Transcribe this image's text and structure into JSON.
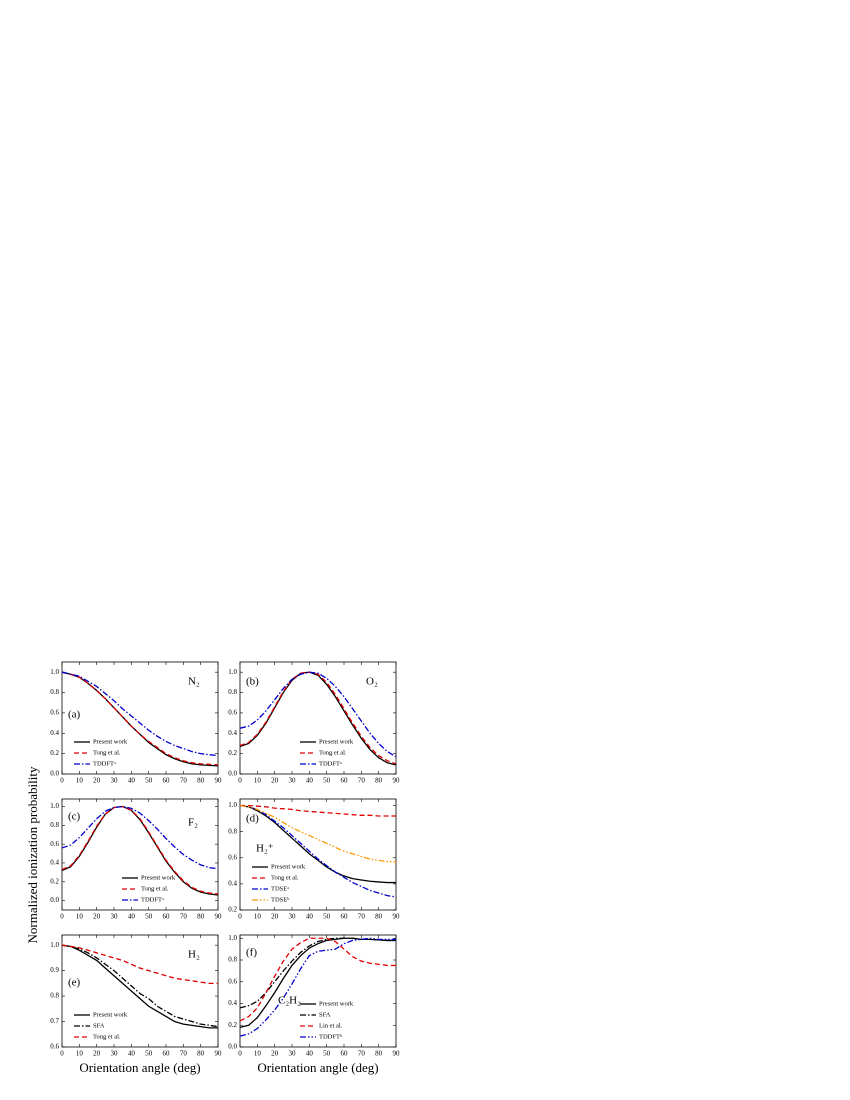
{
  "ylabel": "Normalized ionization probability",
  "chart_data": [
    {
      "type": "line",
      "panel": "(a)",
      "molecule": "N₂",
      "legend": "lower left",
      "x": [
        0,
        5,
        10,
        15,
        20,
        25,
        30,
        35,
        40,
        45,
        50,
        55,
        60,
        65,
        70,
        75,
        80,
        85,
        90
      ],
      "xlim": [
        0,
        90
      ],
      "xticks": [
        0,
        10,
        20,
        30,
        40,
        50,
        60,
        70,
        80,
        90
      ],
      "ylim": [
        0,
        1.1
      ],
      "yticks": [
        {
          "value": 0,
          "label": "0.0"
        },
        {
          "value": 0.2,
          "label": "0.2"
        },
        {
          "value": 0.4,
          "label": "0.4"
        },
        {
          "value": 0.6,
          "label": "0.6"
        },
        {
          "value": 0.8,
          "label": "0.8"
        },
        {
          "value": 1,
          "label": "1.0"
        }
      ],
      "series": [
        {
          "name": "Present work",
          "color": "#000000",
          "linestyle": "solid",
          "values": [
            1.0,
            0.98,
            0.95,
            0.89,
            0.82,
            0.74,
            0.65,
            0.56,
            0.47,
            0.39,
            0.31,
            0.25,
            0.19,
            0.15,
            0.12,
            0.1,
            0.09,
            0.085,
            0.08
          ]
        },
        {
          "name": "Tong et al.",
          "color": "#e00000",
          "linestyle": "dashed",
          "values": [
            1.0,
            0.98,
            0.95,
            0.89,
            0.82,
            0.74,
            0.65,
            0.56,
            0.47,
            0.39,
            0.32,
            0.26,
            0.2,
            0.16,
            0.13,
            0.11,
            0.1,
            0.095,
            0.09
          ]
        },
        {
          "name": "TDDFTᵃ",
          "color": "#0000cc",
          "linestyle": "dashdot",
          "values": [
            1.0,
            0.98,
            0.96,
            0.91,
            0.86,
            0.79,
            0.72,
            0.64,
            0.57,
            0.5,
            0.43,
            0.37,
            0.32,
            0.28,
            0.25,
            0.22,
            0.2,
            0.19,
            0.18
          ]
        }
      ]
    },
    {
      "type": "line",
      "panel": "(b)",
      "molecule": "O₂",
      "legend": "lower center",
      "x": [
        0,
        5,
        10,
        15,
        20,
        25,
        30,
        35,
        40,
        45,
        50,
        55,
        60,
        65,
        70,
        75,
        80,
        85,
        90
      ],
      "xlim": [
        0,
        90
      ],
      "xticks": [
        0,
        10,
        20,
        30,
        40,
        50,
        60,
        70,
        80,
        90
      ],
      "ylim": [
        0,
        1.1
      ],
      "yticks": [
        {
          "value": 0,
          "label": "0.0"
        },
        {
          "value": 0.2,
          "label": "0.2"
        },
        {
          "value": 0.4,
          "label": "0.4"
        },
        {
          "value": 0.6,
          "label": "0.6"
        },
        {
          "value": 0.8,
          "label": "0.8"
        },
        {
          "value": 1,
          "label": "1.0"
        }
      ],
      "series": [
        {
          "name": "Present work",
          "color": "#000000",
          "linestyle": "solid",
          "values": [
            0.27,
            0.3,
            0.38,
            0.5,
            0.65,
            0.8,
            0.92,
            0.99,
            1.0,
            0.97,
            0.88,
            0.76,
            0.62,
            0.48,
            0.35,
            0.24,
            0.16,
            0.11,
            0.09
          ]
        },
        {
          "name": "Tong et al.",
          "color": "#e00000",
          "linestyle": "dashed",
          "values": [
            0.28,
            0.31,
            0.39,
            0.51,
            0.66,
            0.81,
            0.93,
            0.99,
            1.0,
            0.98,
            0.9,
            0.78,
            0.64,
            0.5,
            0.37,
            0.26,
            0.18,
            0.13,
            0.1
          ]
        },
        {
          "name": "TDDFTᵃ",
          "color": "#0000cc",
          "linestyle": "dashdot",
          "values": [
            0.45,
            0.47,
            0.53,
            0.62,
            0.73,
            0.84,
            0.93,
            0.98,
            1.0,
            0.99,
            0.94,
            0.86,
            0.76,
            0.64,
            0.52,
            0.4,
            0.3,
            0.22,
            0.17
          ]
        }
      ]
    },
    {
      "type": "line",
      "panel": "(c)",
      "molecule": "F₂",
      "legend": "lower center",
      "x": [
        0,
        5,
        10,
        15,
        20,
        25,
        30,
        35,
        40,
        45,
        50,
        55,
        60,
        65,
        70,
        75,
        80,
        85,
        90
      ],
      "xlim": [
        0,
        90
      ],
      "xticks": [
        0,
        10,
        20,
        30,
        40,
        50,
        60,
        70,
        80,
        90
      ],
      "ylim": [
        -0.1,
        1.08
      ],
      "yticks": [
        {
          "value": 0,
          "label": "0.0"
        },
        {
          "value": 0.2,
          "label": "0.2"
        },
        {
          "value": 0.4,
          "label": "0.4"
        },
        {
          "value": 0.6,
          "label": "0.6"
        },
        {
          "value": 0.8,
          "label": "0.8"
        },
        {
          "value": 1,
          "label": "1.0"
        }
      ],
      "series": [
        {
          "name": "Present work",
          "color": "#000000",
          "linestyle": "solid",
          "values": [
            0.32,
            0.36,
            0.47,
            0.62,
            0.78,
            0.92,
            0.99,
            1.0,
            0.96,
            0.86,
            0.72,
            0.57,
            0.42,
            0.3,
            0.2,
            0.13,
            0.09,
            0.07,
            0.06
          ]
        },
        {
          "name": "Tong et al.",
          "color": "#e00000",
          "linestyle": "dashed",
          "values": [
            0.33,
            0.37,
            0.48,
            0.63,
            0.79,
            0.92,
            0.99,
            1.0,
            0.96,
            0.87,
            0.73,
            0.58,
            0.43,
            0.31,
            0.21,
            0.14,
            0.1,
            0.08,
            0.07
          ]
        },
        {
          "name": "TDDFTᵃ",
          "color": "#0000cc",
          "linestyle": "dashdot",
          "values": [
            0.56,
            0.59,
            0.67,
            0.77,
            0.87,
            0.95,
            0.99,
            1.0,
            0.98,
            0.93,
            0.85,
            0.76,
            0.66,
            0.57,
            0.49,
            0.43,
            0.38,
            0.35,
            0.34
          ]
        }
      ]
    },
    {
      "type": "line",
      "panel": "(d)",
      "molecule": "H₂⁺",
      "legend": "lower left",
      "x": [
        0,
        5,
        10,
        15,
        20,
        25,
        30,
        35,
        40,
        45,
        50,
        55,
        60,
        65,
        70,
        75,
        80,
        85,
        90
      ],
      "xlim": [
        0,
        90
      ],
      "xticks": [
        0,
        10,
        20,
        30,
        40,
        50,
        60,
        70,
        80,
        90
      ],
      "ylim": [
        0.2,
        1.05
      ],
      "yticks": [
        0.2,
        0.4,
        0.6,
        0.8,
        {
          "value": 1,
          "label": "1.0"
        }
      ],
      "series": [
        {
          "name": "Present work",
          "color": "#000000",
          "linestyle": "solid",
          "values": [
            1.0,
            0.99,
            0.96,
            0.92,
            0.87,
            0.81,
            0.75,
            0.69,
            0.63,
            0.58,
            0.53,
            0.49,
            0.46,
            0.44,
            0.43,
            0.42,
            0.415,
            0.41,
            0.41
          ]
        },
        {
          "name": "Tong et al.",
          "color": "#e00000",
          "linestyle": "dashed",
          "values": [
            1.0,
            1.0,
            0.995,
            0.99,
            0.98,
            0.975,
            0.97,
            0.96,
            0.955,
            0.95,
            0.945,
            0.94,
            0.935,
            0.93,
            0.925,
            0.925,
            0.92,
            0.92,
            0.92
          ]
        },
        {
          "name": "TDSEᵃ",
          "color": "#0000cc",
          "linestyle": "dashdot",
          "values": [
            1.0,
            0.99,
            0.97,
            0.93,
            0.88,
            0.83,
            0.77,
            0.71,
            0.65,
            0.59,
            0.54,
            0.49,
            0.45,
            0.41,
            0.38,
            0.35,
            0.33,
            0.31,
            0.3
          ]
        },
        {
          "name": "TDSEᵇ",
          "color": "#ff9900",
          "linestyle": "dashdotdot",
          "values": [
            1.0,
            0.99,
            0.97,
            0.94,
            0.91,
            0.87,
            0.83,
            0.8,
            0.77,
            0.74,
            0.71,
            0.68,
            0.65,
            0.63,
            0.61,
            0.59,
            0.58,
            0.57,
            0.57
          ]
        }
      ]
    },
    {
      "type": "line",
      "panel": "(e)",
      "molecule": "H₂",
      "legend": "lower left",
      "xlabel": "Orientation angle (deg)",
      "x": [
        0,
        5,
        10,
        15,
        20,
        25,
        30,
        35,
        40,
        45,
        50,
        55,
        60,
        65,
        70,
        75,
        80,
        85,
        90
      ],
      "xlim": [
        0,
        90
      ],
      "xticks": [
        0,
        10,
        20,
        30,
        40,
        50,
        60,
        70,
        80,
        90
      ],
      "ylim": [
        0.6,
        1.04
      ],
      "yticks": [
        0.6,
        0.7,
        0.8,
        0.9,
        {
          "value": 1,
          "label": "1.0"
        }
      ],
      "series": [
        {
          "name": "Present work",
          "color": "#000000",
          "linestyle": "solid",
          "values": [
            1.0,
            0.995,
            0.98,
            0.96,
            0.94,
            0.91,
            0.88,
            0.85,
            0.82,
            0.79,
            0.76,
            0.74,
            0.72,
            0.7,
            0.69,
            0.685,
            0.68,
            0.675,
            0.675
          ]
        },
        {
          "name": "SFA",
          "color": "#000000",
          "linestyle": "dashdot",
          "values": [
            1.0,
            0.995,
            0.985,
            0.97,
            0.95,
            0.925,
            0.9,
            0.87,
            0.84,
            0.81,
            0.79,
            0.76,
            0.74,
            0.72,
            0.71,
            0.7,
            0.69,
            0.685,
            0.68
          ]
        },
        {
          "name": "Tong et al.",
          "color": "#e00000",
          "linestyle": "dashed",
          "values": [
            1.0,
            0.995,
            0.99,
            0.98,
            0.97,
            0.96,
            0.95,
            0.94,
            0.925,
            0.91,
            0.9,
            0.89,
            0.88,
            0.87,
            0.865,
            0.86,
            0.855,
            0.85,
            0.85
          ]
        }
      ]
    },
    {
      "type": "line",
      "panel": "(f)",
      "molecule": "C₂H₂",
      "legend": "lower center",
      "xlabel": "Orientation angle (deg)",
      "x": [
        0,
        5,
        10,
        15,
        20,
        25,
        30,
        35,
        40,
        45,
        50,
        55,
        60,
        65,
        70,
        75,
        80,
        85,
        90
      ],
      "xlim": [
        0,
        90
      ],
      "xticks": [
        0,
        10,
        20,
        30,
        40,
        50,
        60,
        70,
        80,
        90
      ],
      "ylim": [
        0,
        1.03
      ],
      "yticks": [
        {
          "value": 0,
          "label": "0.0"
        },
        {
          "value": 0.2,
          "label": "0.2"
        },
        {
          "value": 0.4,
          "label": "0.4"
        },
        {
          "value": 0.6,
          "label": "0.6"
        },
        {
          "value": 0.8,
          "label": "0.8"
        },
        {
          "value": 1,
          "label": "1.0"
        }
      ],
      "series": [
        {
          "name": "Present work",
          "color": "#000000",
          "linestyle": "solid",
          "values": [
            0.18,
            0.2,
            0.27,
            0.38,
            0.5,
            0.63,
            0.75,
            0.84,
            0.91,
            0.95,
            0.98,
            0.99,
            1.0,
            1.0,
            0.99,
            0.99,
            0.985,
            0.98,
            0.98
          ]
        },
        {
          "name": "SFA",
          "color": "#000000",
          "linestyle": "dashdot",
          "values": [
            0.36,
            0.38,
            0.42,
            0.5,
            0.6,
            0.7,
            0.79,
            0.87,
            0.93,
            0.97,
            0.99,
            1.0,
            1.0,
            1.0,
            0.99,
            0.99,
            0.985,
            0.98,
            0.98
          ]
        },
        {
          "name": "Lin et al.",
          "color": "#e00000",
          "linestyle": "dashed",
          "values": [
            0.24,
            0.28,
            0.36,
            0.5,
            0.65,
            0.79,
            0.9,
            0.96,
            1.0,
            1.0,
            1.0,
            0.97,
            0.9,
            0.83,
            0.79,
            0.77,
            0.76,
            0.75,
            0.75
          ]
        },
        {
          "name": "TDDFTᵇ",
          "color": "#0000cc",
          "linestyle": "dashdotdot",
          "values": [
            0.1,
            0.12,
            0.17,
            0.25,
            0.34,
            0.45,
            0.58,
            0.72,
            0.84,
            0.88,
            0.89,
            0.9,
            0.95,
            0.98,
            0.99,
            1.0,
            0.99,
            0.99,
            0.99
          ]
        }
      ]
    }
  ]
}
